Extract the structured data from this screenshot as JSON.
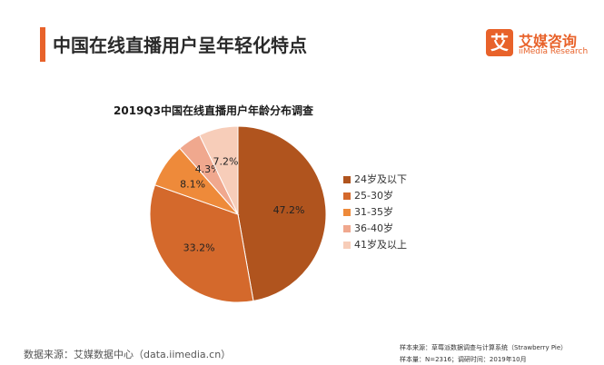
{
  "header": {
    "title": "中国在线直播用户呈年轻化特点",
    "logo_mark": "艾",
    "logo_cn": "艾媒咨询",
    "logo_en": "iiMedia Research",
    "accent_color": "#e8622a"
  },
  "chart_data": {
    "type": "pie",
    "title": "2019Q3中国在线直播用户年龄分布调查",
    "categories": [
      "24岁及以下",
      "25-30岁",
      "31-35岁",
      "36-40岁",
      "41岁及以上"
    ],
    "values": [
      47.2,
      33.2,
      8.1,
      4.3,
      7.2
    ],
    "labels": [
      "47.2%",
      "33.2%",
      "8.1%",
      "4.3%",
      "7.2%"
    ],
    "colors": [
      "#b0541e",
      "#d4692c",
      "#ee8a3a",
      "#f0a88e",
      "#f7cdb9"
    ],
    "legend_position": "right"
  },
  "footer": {
    "source": "数据来源：艾媒数据中心（data.iimedia.cn）",
    "sample_source": "样本来源：草莓派数据调查与计算系统（Strawberry Pie）",
    "sample_info": "样本量：N=2316；调研时间：2019年10月"
  }
}
